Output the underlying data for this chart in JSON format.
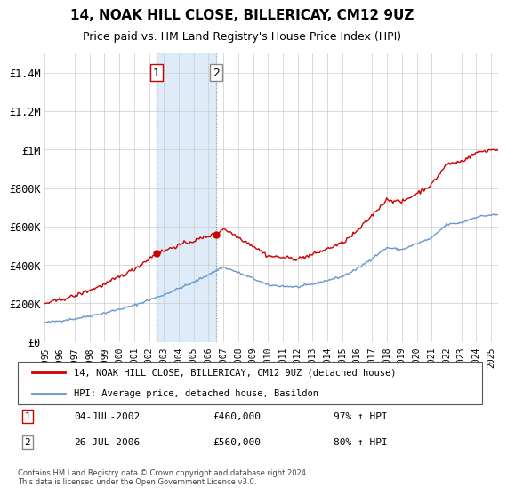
{
  "title": "14, NOAK HILL CLOSE, BILLERICAY, CM12 9UZ",
  "subtitle": "Price paid vs. HM Land Registry's House Price Index (HPI)",
  "ylabel_ticks": [
    "£0",
    "£200K",
    "£400K",
    "£600K",
    "£800K",
    "£1M",
    "£1.2M",
    "£1.4M"
  ],
  "ytick_values": [
    0,
    200000,
    400000,
    600000,
    800000,
    1000000,
    1200000,
    1400000
  ],
  "ylim": [
    0,
    1500000
  ],
  "sale1": {
    "date": "04-JUL-2002",
    "price": 460000,
    "label": "1",
    "hpi_pct": "97% ↑ HPI"
  },
  "sale2": {
    "date": "26-JUL-2006",
    "price": 560000,
    "label": "2",
    "hpi_pct": "80% ↑ HPI"
  },
  "legend_line1": "14, NOAK HILL CLOSE, BILLERICAY, CM12 9UZ (detached house)",
  "legend_line2": "HPI: Average price, detached house, Basildon",
  "footer": "Contains HM Land Registry data © Crown copyright and database right 2024.\nThis data is licensed under the Open Government Licence v3.0.",
  "line_color_price": "#cc0000",
  "line_color_hpi": "#6699cc",
  "shade_color": "#d0e4f7",
  "grid_color": "#cccccc",
  "x_start_year": 1995,
  "x_end_year": 2025
}
